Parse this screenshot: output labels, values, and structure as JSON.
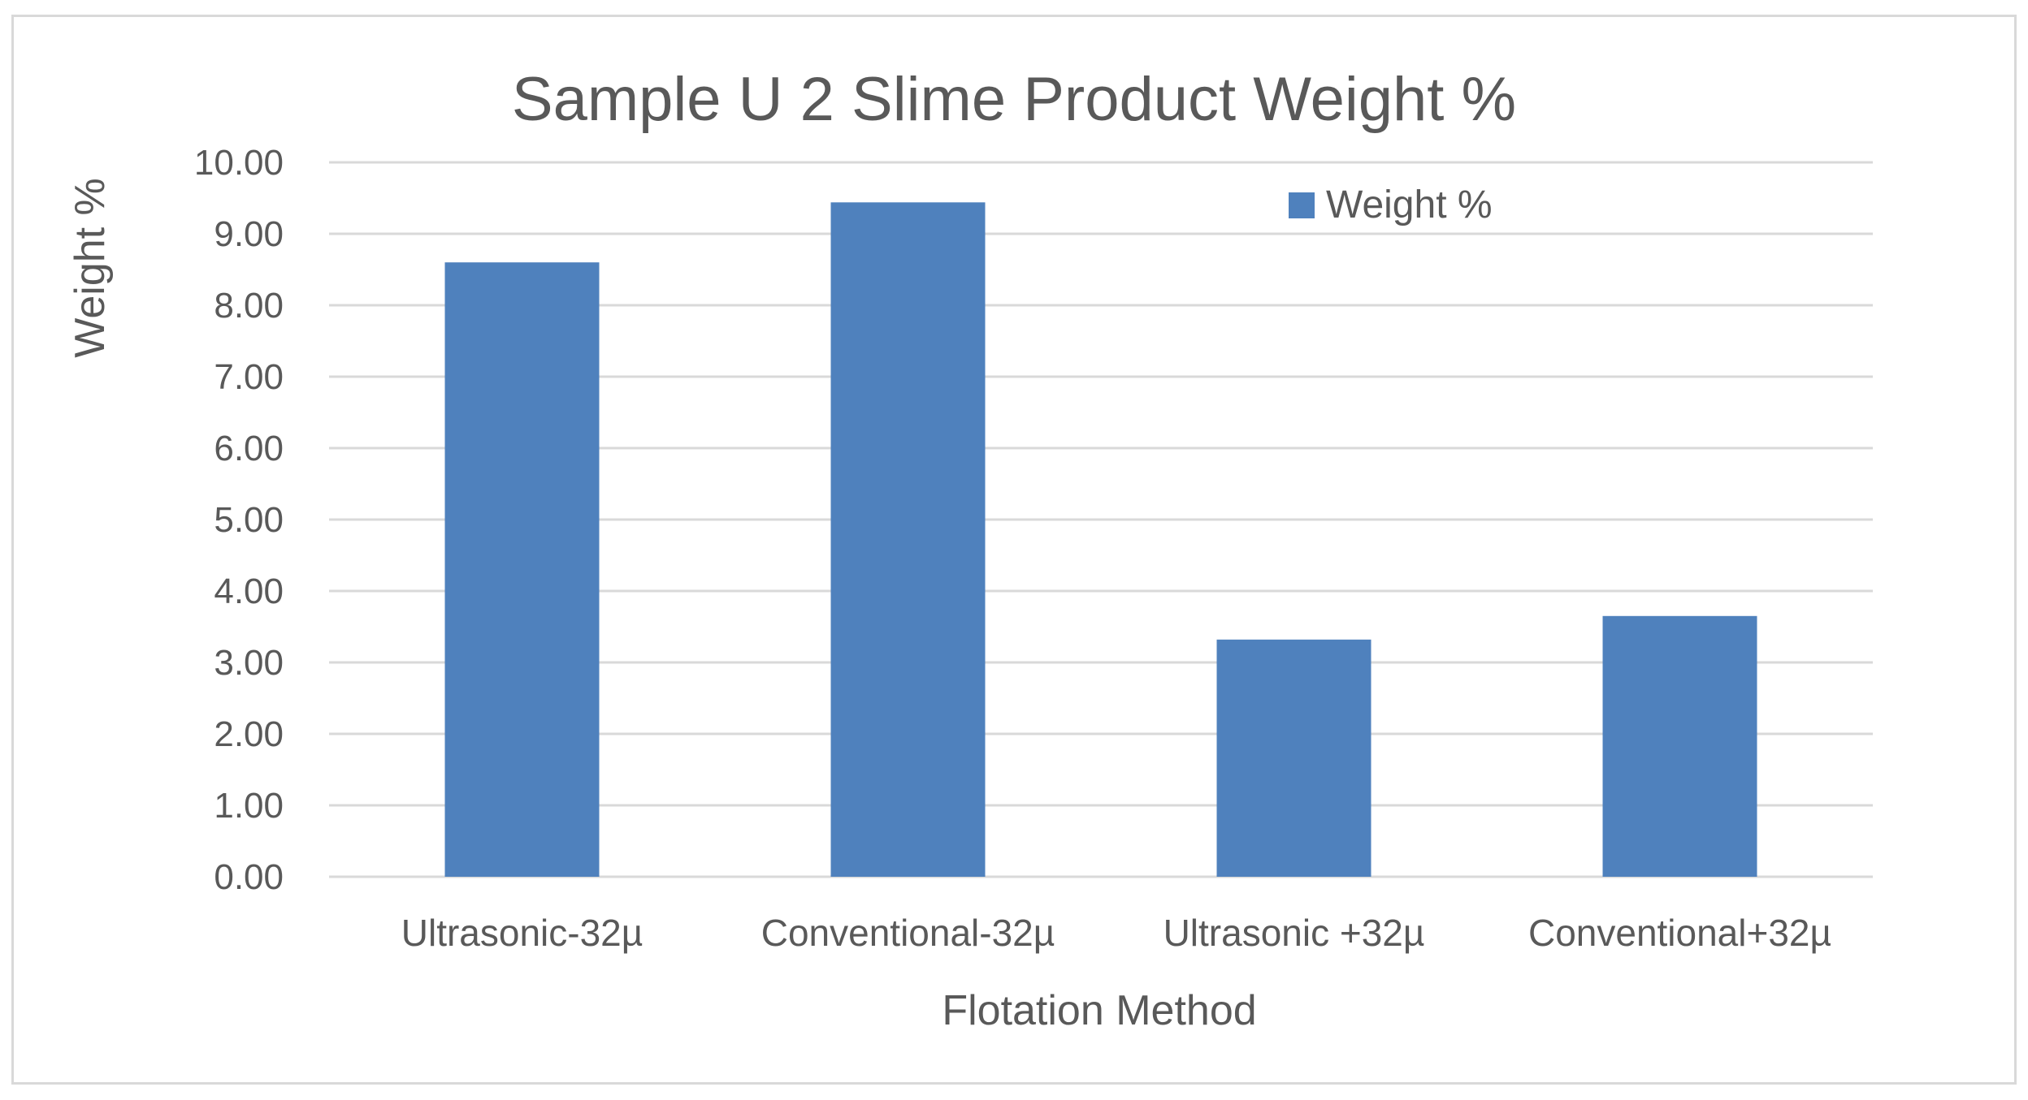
{
  "chart_data": {
    "type": "bar",
    "title": "Sample U 2 Slime Product Weight %",
    "xlabel": "Flotation Method",
    "ylabel": "Weight %",
    "categories": [
      "Ultrasonic-32µ",
      "Conventional-32µ",
      "Ultrasonic +32µ",
      "Conventional+32µ"
    ],
    "series": [
      {
        "name": "Weight %",
        "values": [
          8.6,
          9.44,
          3.32,
          3.65
        ],
        "color": "#4f81bd"
      }
    ],
    "ylim": [
      0,
      10
    ],
    "yticks": [
      "0.00",
      "1.00",
      "2.00",
      "3.00",
      "4.00",
      "5.00",
      "6.00",
      "7.00",
      "8.00",
      "9.00",
      "10.00"
    ],
    "grid": true,
    "legend_position": "top-right",
    "colors": {
      "gridline": "#d9d9d9",
      "text": "#595959",
      "border": "#d9d9d9"
    }
  }
}
